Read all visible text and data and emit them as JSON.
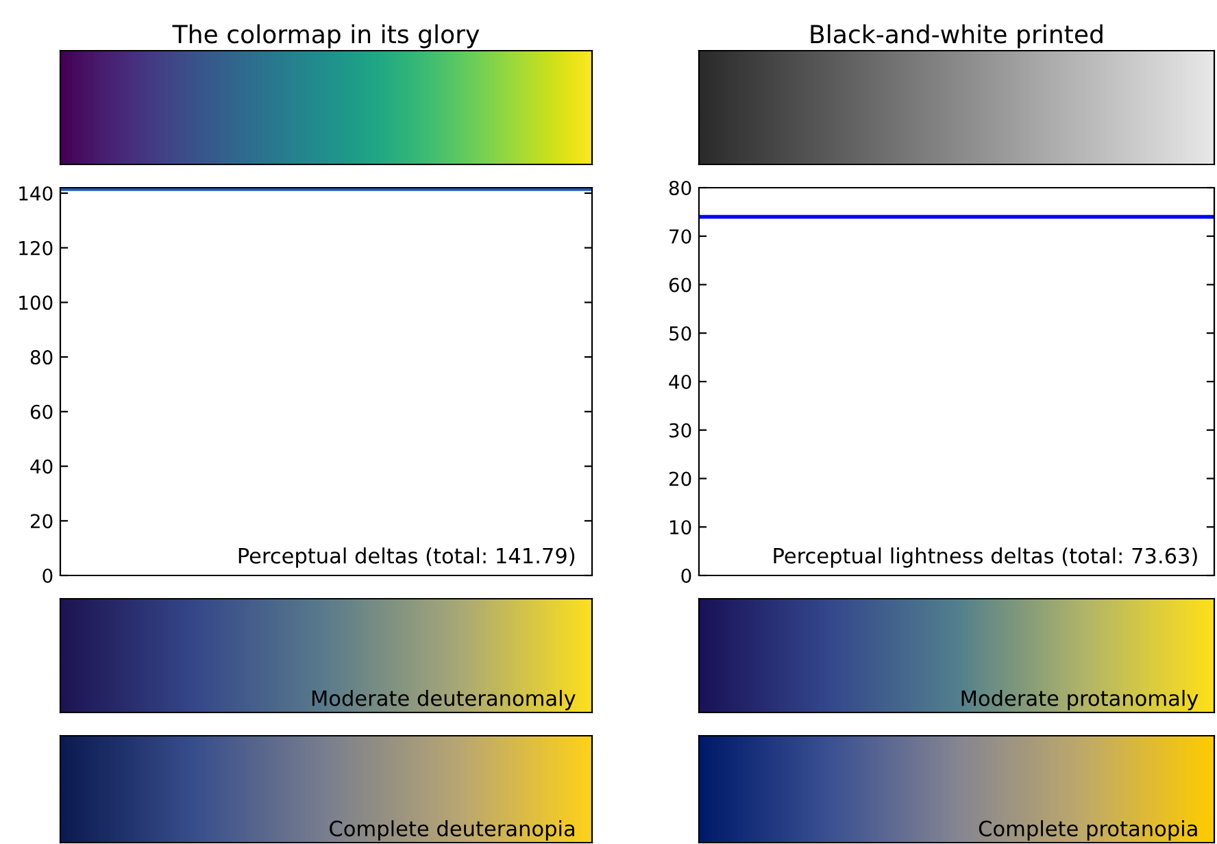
{
  "chart_data": [
    {
      "type": "other",
      "title": "The colormap in its glory"
    },
    {
      "type": "other",
      "title": "Black-and-white printed"
    },
    {
      "type": "line",
      "categories": [
        null,
        null,
        null,
        null,
        null,
        null,
        null,
        null,
        null,
        null
      ],
      "series": [
        {
          "color": "#1f5fb4",
          "values": [
            141.5,
            141.5,
            141.5,
            141.5,
            141.5,
            141.5,
            141.5,
            141.5,
            141.5,
            141.5
          ]
        }
      ],
      "ylim": [
        0,
        142
      ],
      "yticks": [
        0,
        20,
        40,
        60,
        80,
        100,
        120,
        140
      ],
      "tick_labels": "y",
      "annotations": [
        "Perceptual deltas (total: 141.79)"
      ]
    },
    {
      "type": "line",
      "categories": [
        null,
        null,
        null,
        null,
        null,
        null,
        null,
        null,
        null,
        null
      ],
      "series": [
        {
          "color": "#0000ff",
          "values": [
            74,
            74,
            74,
            74,
            74,
            74,
            74,
            74,
            74,
            74
          ]
        }
      ],
      "ylim": [
        0,
        80
      ],
      "yticks": [
        0,
        10,
        20,
        30,
        40,
        50,
        60,
        70,
        80
      ],
      "tick_labels": "y",
      "annotations": [
        "Perceptual lightness deltas (total: 73.63)"
      ]
    },
    {
      "type": "other",
      "annotations": [
        "Moderate deuteranomaly"
      ]
    },
    {
      "type": "other",
      "annotations": [
        "Moderate protanomaly"
      ]
    },
    {
      "type": "other",
      "annotations": [
        "Complete deuteranopia"
      ]
    },
    {
      "type": "other",
      "annotations": [
        "Complete protanopia"
      ]
    }
  ]
}
